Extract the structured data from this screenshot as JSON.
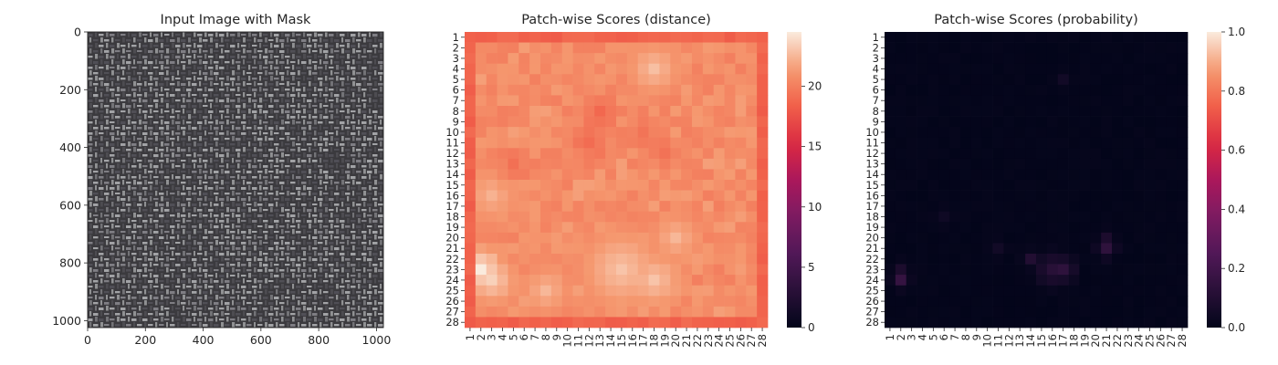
{
  "figure": {
    "background": "#ffffff"
  },
  "panels": {
    "image": {
      "title": "Input Image with Mask",
      "xticks": [
        "0",
        "200",
        "400",
        "600",
        "800",
        "1000"
      ],
      "yticks": [
        "0",
        "200",
        "400",
        "600",
        "800",
        "1000"
      ],
      "texture_colors": [
        "#3b3a3e",
        "#55545a",
        "#8c8b90",
        "#b5b6b8"
      ]
    },
    "distance": {
      "title": "Patch-wise Scores (distance)",
      "colorbar_ticks": [
        "0",
        "5",
        "10",
        "15",
        "20"
      ]
    },
    "probability": {
      "title": "Patch-wise Scores (probability)",
      "colorbar_ticks": [
        "0.0",
        "0.2",
        "0.4",
        "0.6",
        "0.8",
        "1.0"
      ]
    }
  },
  "chart_data": [
    {
      "type": "image",
      "title": "Input Image with Mask",
      "xlim": [
        0,
        1024
      ],
      "ylim": [
        1024,
        0
      ],
      "xticks": [
        0,
        200,
        400,
        600,
        800,
        1000
      ],
      "yticks": [
        0,
        200,
        400,
        600,
        800,
        1000
      ],
      "description_colors": [
        "#3b3a3e",
        "#b5b6b8"
      ]
    },
    {
      "type": "heatmap",
      "title": "Patch-wise Scores (distance)",
      "rows": 28,
      "cols": 28,
      "row_labels": [
        "1",
        "2",
        "3",
        "4",
        "5",
        "6",
        "7",
        "8",
        "9",
        "10",
        "11",
        "12",
        "13",
        "14",
        "15",
        "16",
        "17",
        "18",
        "19",
        "20",
        "21",
        "22",
        "23",
        "24",
        "25",
        "26",
        "27",
        "28"
      ],
      "col_labels": [
        "1",
        "2",
        "3",
        "4",
        "5",
        "6",
        "7",
        "8",
        "9",
        "10",
        "11",
        "12",
        "13",
        "14",
        "15",
        "16",
        "17",
        "18",
        "19",
        "20",
        "21",
        "22",
        "23",
        "24",
        "25",
        "26",
        "27",
        "28"
      ],
      "vmin": 0,
      "vmax": 24.5,
      "colormap": "rocket",
      "colorbar_ticks": [
        0,
        5,
        10,
        15,
        20
      ],
      "border_value": 18.5,
      "interior_base": 20.8,
      "hotspots": [
        {
          "row": 23,
          "col": 2,
          "value": 24.5,
          "radius": 1.6
        },
        {
          "row": 24,
          "col": 3,
          "value": 23.5,
          "radius": 1.6
        },
        {
          "row": 23,
          "col": 15,
          "value": 23.0,
          "radius": 2.5
        },
        {
          "row": 24,
          "col": 18,
          "value": 23.0,
          "radius": 1.8
        },
        {
          "row": 4,
          "col": 18,
          "value": 22.8,
          "radius": 1.6
        },
        {
          "row": 20,
          "col": 20,
          "value": 22.5,
          "radius": 1.4
        },
        {
          "row": 16,
          "col": 3,
          "value": 22.3,
          "radius": 1.6
        },
        {
          "row": 25,
          "col": 8,
          "value": 22.5,
          "radius": 1.4
        }
      ],
      "coldspots": [
        {
          "row": 11,
          "col": 12,
          "value": 19.0,
          "radius": 1.8
        },
        {
          "row": 8,
          "col": 13,
          "value": 18.8,
          "radius": 1.5
        },
        {
          "row": 13,
          "col": 5,
          "value": 19.2,
          "radius": 1.5
        },
        {
          "row": 12,
          "col": 19,
          "value": 19.3,
          "radius": 1.5
        },
        {
          "row": 10,
          "col": 17,
          "value": 19.4,
          "radius": 1.5
        }
      ]
    },
    {
      "type": "heatmap",
      "title": "Patch-wise Scores (probability)",
      "rows": 28,
      "cols": 28,
      "row_labels": [
        "1",
        "2",
        "3",
        "4",
        "5",
        "6",
        "7",
        "8",
        "9",
        "10",
        "11",
        "12",
        "13",
        "14",
        "15",
        "16",
        "17",
        "18",
        "19",
        "20",
        "21",
        "22",
        "23",
        "24",
        "25",
        "26",
        "27",
        "28"
      ],
      "col_labels": [
        "1",
        "2",
        "3",
        "4",
        "5",
        "6",
        "7",
        "8",
        "9",
        "10",
        "11",
        "12",
        "13",
        "14",
        "15",
        "16",
        "17",
        "18",
        "19",
        "20",
        "21",
        "22",
        "23",
        "24",
        "25",
        "26",
        "27",
        "28"
      ],
      "vmin": 0,
      "vmax": 1,
      "colormap": "rocket",
      "colorbar_ticks": [
        0,
        0.2,
        0.4,
        0.6,
        0.8,
        1.0
      ],
      "base_value": 0.0,
      "hotspots": [
        {
          "row": 24,
          "col": 2,
          "value": 0.16,
          "radius": 0.8
        },
        {
          "row": 23,
          "col": 2,
          "value": 0.08,
          "radius": 0.8
        },
        {
          "row": 23,
          "col": 16,
          "value": 0.12,
          "radius": 1.6
        },
        {
          "row": 23,
          "col": 17,
          "value": 0.14,
          "radius": 1.2
        },
        {
          "row": 22,
          "col": 14,
          "value": 0.1,
          "radius": 0.8
        },
        {
          "row": 21,
          "col": 21,
          "value": 0.14,
          "radius": 0.9
        },
        {
          "row": 20,
          "col": 21,
          "value": 0.08,
          "radius": 0.8
        },
        {
          "row": 5,
          "col": 17,
          "value": 0.05,
          "radius": 0.8
        },
        {
          "row": 18,
          "col": 6,
          "value": 0.04,
          "radius": 1.0
        },
        {
          "row": 21,
          "col": 11,
          "value": 0.05,
          "radius": 0.9
        }
      ]
    }
  ]
}
